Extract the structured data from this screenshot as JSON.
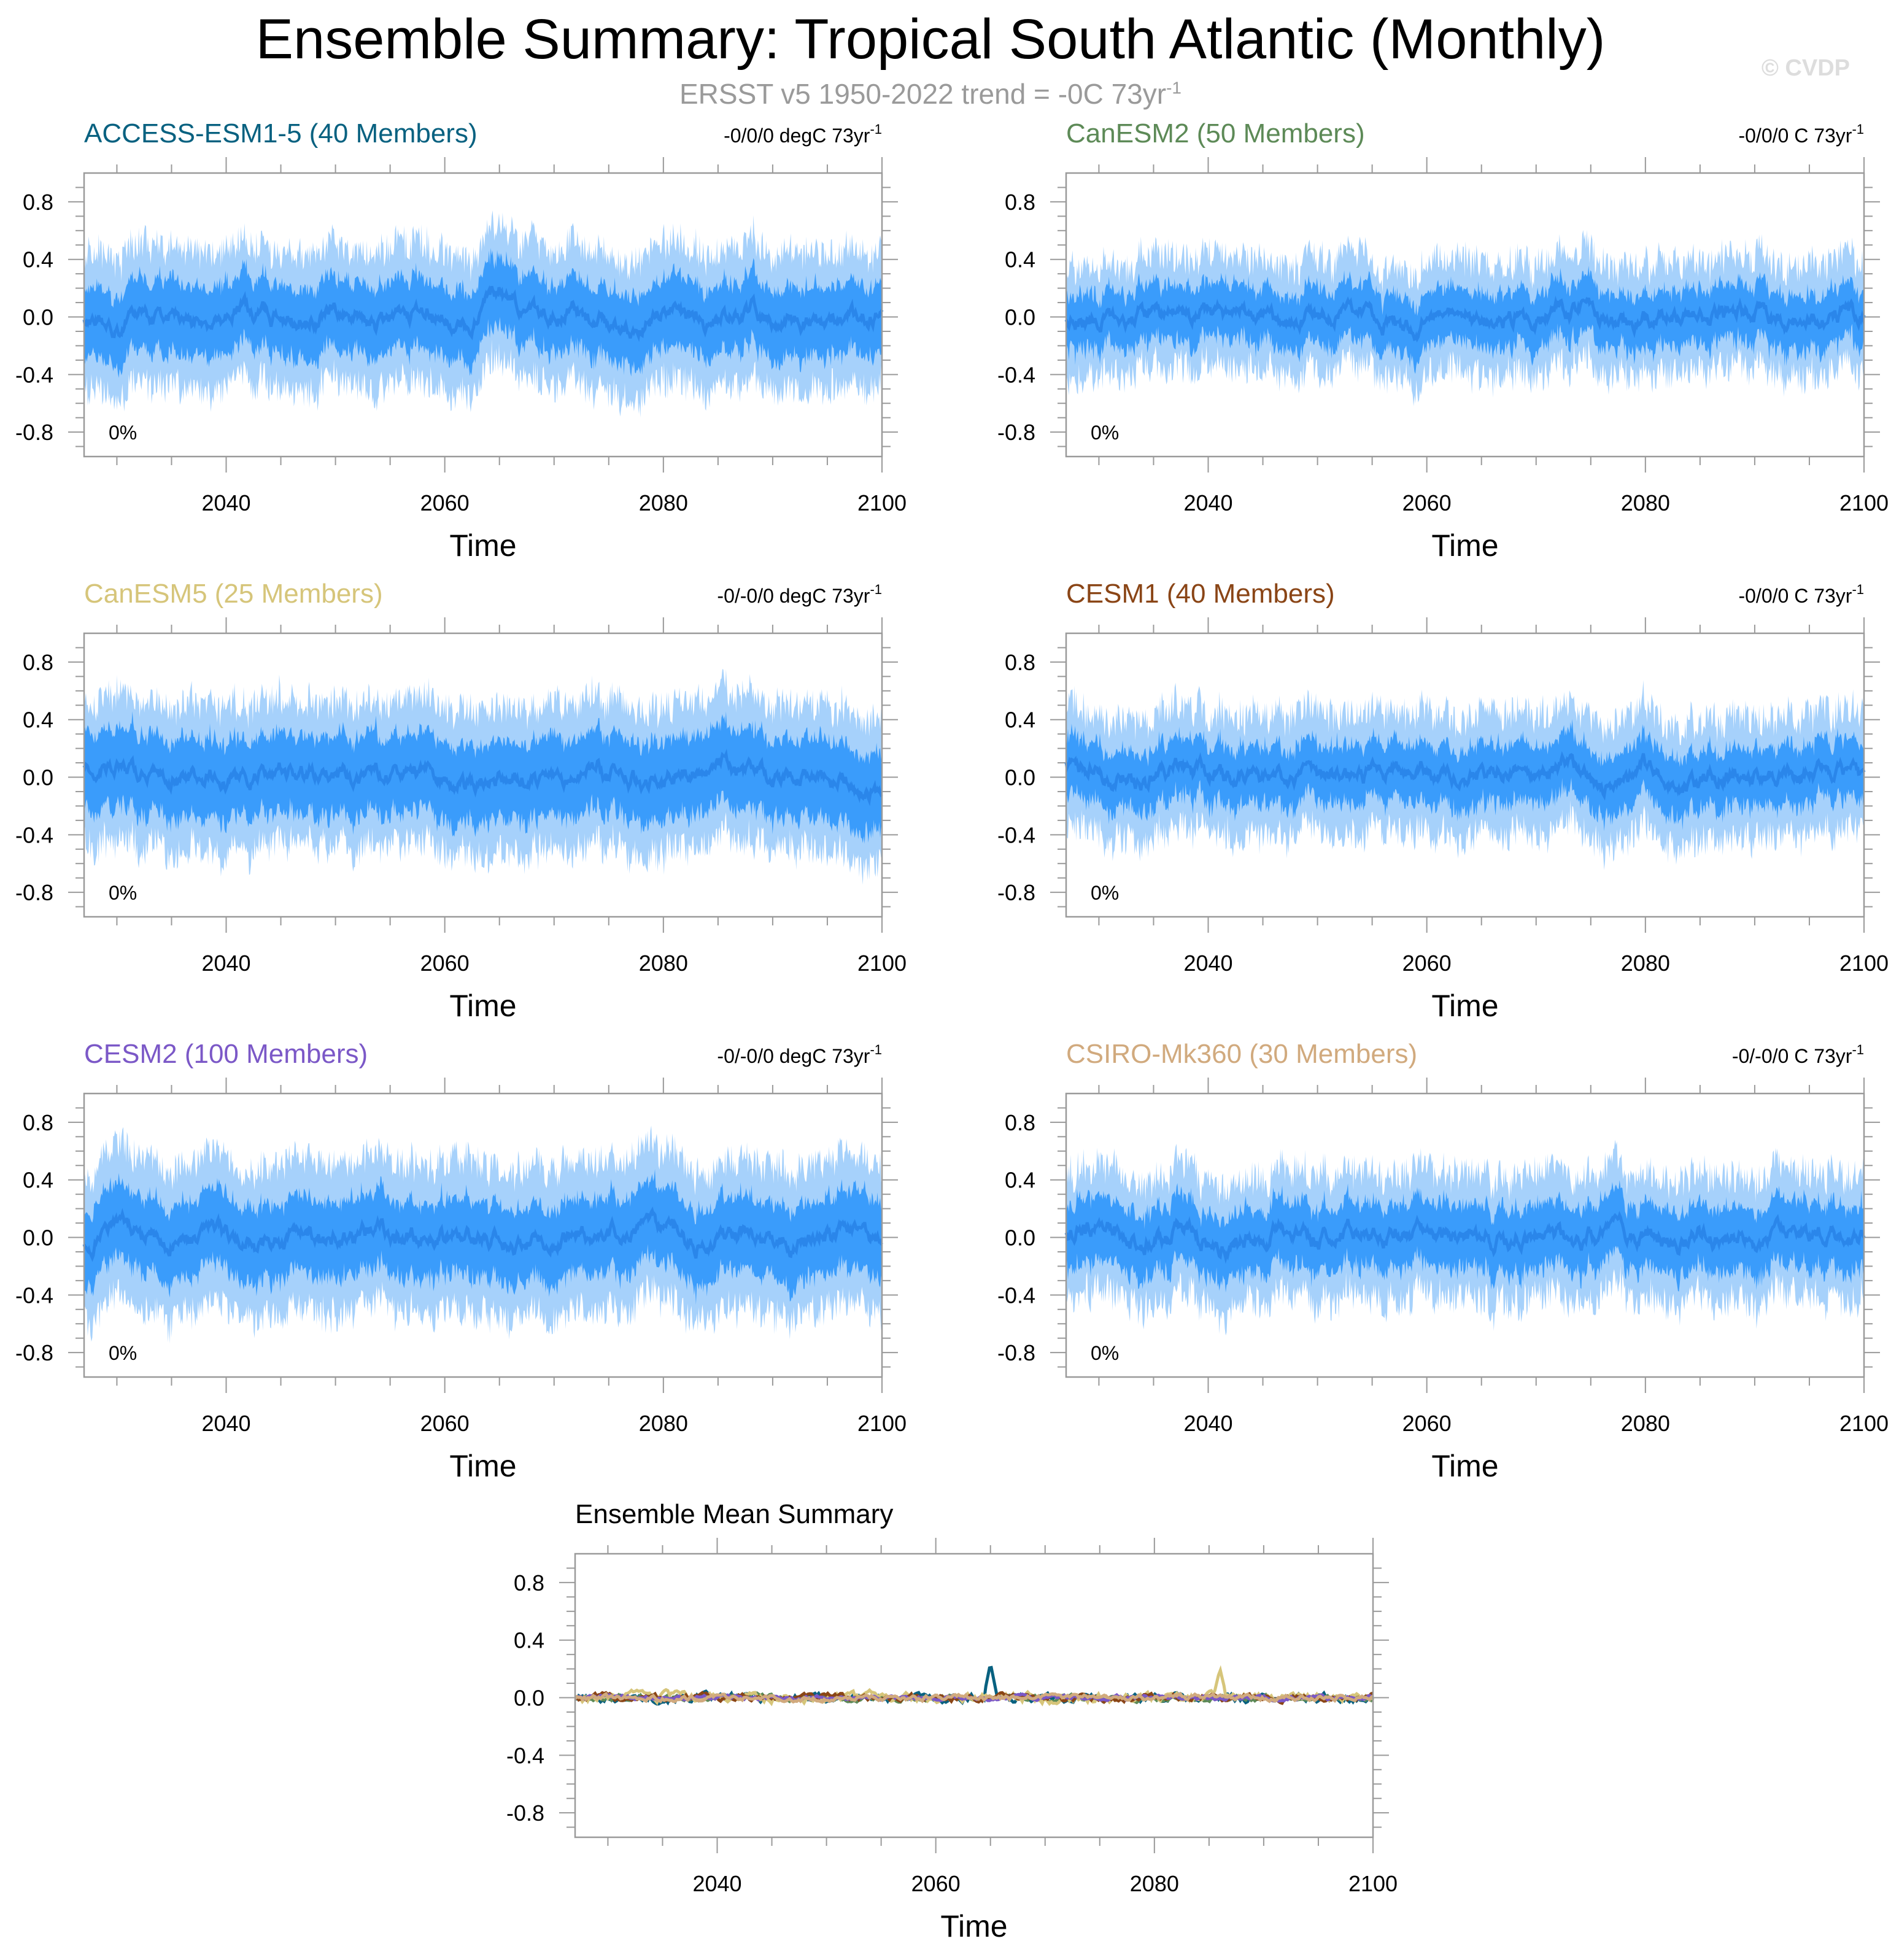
{
  "page": {
    "title": "Ensemble Summary: Tropical South Atlantic (Monthly)",
    "subtitle_main": "ERSST v5 1950-2022 trend = -0C 73yr",
    "subtitle_sup": "-1",
    "watermark": "© CVDP"
  },
  "colors": {
    "band_outer": "#a6d1fb",
    "band_inner": "#3a9cfb",
    "mean_line": "#2a86ea",
    "axis": "#9a9a9a",
    "text": "#000000"
  },
  "chart_data": [
    {
      "type": "area",
      "id": "access",
      "model": "ACCESS-ESM1-5 (40 Members)",
      "title_color": "#086180",
      "trend": "-0/0/0 degC 73yr",
      "trend_sup": "-1",
      "percent": "0%",
      "xlabel": "Time",
      "xlim": [
        2027,
        2100
      ],
      "ylim": [
        -0.97,
        1.0
      ],
      "xticks": [
        2040,
        2060,
        2080,
        2100
      ],
      "yticks": [
        0.8,
        0.4,
        0.0,
        -0.4,
        -0.8
      ],
      "ytick_labels": [
        "0.8",
        "0.4",
        "0.0",
        "-0.4",
        "-0.8"
      ],
      "series_anchors": {
        "x": [
          2027,
          2030,
          2034,
          2038,
          2042,
          2046,
          2050,
          2054,
          2058,
          2062,
          2065,
          2068,
          2072,
          2076,
          2080,
          2084,
          2088,
          2092,
          2096,
          2100
        ],
        "mean": [
          0.0,
          -0.05,
          0.04,
          -0.03,
          0.05,
          -0.04,
          0.03,
          -0.05,
          0.05,
          -0.08,
          0.2,
          0.02,
          0.05,
          -0.1,
          0.03,
          -0.06,
          0.04,
          -0.05,
          0.05,
          0.0
        ]
      },
      "band_inner": 0.22,
      "band_outer": 0.42,
      "seed": 11
    },
    {
      "type": "area",
      "id": "canesm2",
      "model": "CanESM2 (50 Members)",
      "title_color": "#5d8a57",
      "trend": "-0/0/0 C 73yr",
      "trend_sup": "-1",
      "percent": "0%",
      "xlabel": "Time",
      "xlim": [
        2027,
        2100
      ],
      "ylim": [
        -0.97,
        1.0
      ],
      "xticks": [
        2040,
        2060,
        2080,
        2100
      ],
      "yticks": [
        0.8,
        0.4,
        0.0,
        -0.4,
        -0.8
      ],
      "ytick_labels": [
        "0.8",
        "0.4",
        "0.0",
        "-0.4",
        "-0.8"
      ],
      "series_anchors": {
        "x": [
          2027,
          2031,
          2035,
          2039,
          2043,
          2047,
          2051,
          2055,
          2058,
          2062,
          2066,
          2070,
          2074,
          2078,
          2082,
          2086,
          2090,
          2094,
          2098,
          2100
        ],
        "mean": [
          0.0,
          -0.03,
          0.03,
          -0.02,
          0.04,
          -0.03,
          0.03,
          0.05,
          -0.1,
          0.03,
          -0.03,
          0.03,
          0.05,
          -0.07,
          0.03,
          -0.02,
          0.04,
          -0.03,
          0.02,
          0.0
        ]
      },
      "band_inner": 0.17,
      "band_outer": 0.33,
      "seed": 23
    },
    {
      "type": "area",
      "id": "canesm5",
      "model": "CanESM5 (25 Members)",
      "title_color": "#d6c57a",
      "trend": "-0/-0/0 degC 73yr",
      "trend_sup": "-1",
      "percent": "0%",
      "xlabel": "Time",
      "xlim": [
        2027,
        2100
      ],
      "ylim": [
        -0.97,
        1.0
      ],
      "xticks": [
        2040,
        2060,
        2080,
        2100
      ],
      "yticks": [
        0.8,
        0.4,
        0.0,
        -0.4,
        -0.8
      ],
      "ytick_labels": [
        "0.8",
        "0.4",
        "0.0",
        "-0.4",
        "-0.8"
      ],
      "series_anchors": {
        "x": [
          2027,
          2030,
          2034,
          2038,
          2042,
          2046,
          2050,
          2054,
          2058,
          2062,
          2066,
          2070,
          2074,
          2078,
          2082,
          2086,
          2090,
          2094,
          2098,
          2100
        ],
        "mean": [
          0.1,
          0.05,
          -0.02,
          0.03,
          -0.05,
          0.06,
          -0.03,
          0.02,
          0.05,
          -0.06,
          0.03,
          -0.03,
          0.05,
          -0.02,
          0.04,
          0.1,
          -0.03,
          0.02,
          -0.05,
          -0.18
        ]
      },
      "band_inner": 0.25,
      "band_outer": 0.45,
      "seed": 37
    },
    {
      "type": "area",
      "id": "cesm1",
      "model": "CESM1 (40 Members)",
      "title_color": "#8a4516",
      "trend": "-0/0/0 C 73yr",
      "trend_sup": "-1",
      "percent": "0%",
      "xlabel": "Time",
      "xlim": [
        2027,
        2100
      ],
      "ylim": [
        -0.97,
        1.0
      ],
      "xticks": [
        2040,
        2060,
        2080,
        2100
      ],
      "yticks": [
        0.8,
        0.4,
        0.0,
        -0.4,
        -0.8
      ],
      "ytick_labels": [
        "0.8",
        "0.4",
        "0.0",
        "-0.4",
        "-0.8"
      ],
      "series_anchors": {
        "x": [
          2027,
          2030,
          2034,
          2038,
          2042,
          2046,
          2050,
          2054,
          2058,
          2062,
          2066,
          2070,
          2073,
          2076,
          2080,
          2084,
          2088,
          2092,
          2096,
          2100
        ],
        "mean": [
          0.12,
          0.02,
          -0.06,
          0.08,
          -0.04,
          0.03,
          -0.05,
          0.02,
          0.06,
          -0.03,
          0.04,
          0.02,
          0.12,
          -0.06,
          0.08,
          -0.08,
          0.04,
          -0.02,
          0.03,
          -0.02
        ]
      },
      "band_inner": 0.18,
      "band_outer": 0.36,
      "seed": 41
    },
    {
      "type": "area",
      "id": "cesm2",
      "model": "CESM2 (100 Members)",
      "title_color": "#7b58c7",
      "trend": "-0/-0/0 degC 73yr",
      "trend_sup": "-1",
      "percent": "0%",
      "xlabel": "Time",
      "xlim": [
        2027,
        2100
      ],
      "ylim": [
        -0.97,
        1.0
      ],
      "xticks": [
        2040,
        2060,
        2080,
        2100
      ],
      "yticks": [
        0.8,
        0.4,
        0.0,
        -0.4,
        -0.8
      ],
      "ytick_labels": [
        "0.8",
        "0.4",
        "0.0",
        "-0.4",
        "-0.8"
      ],
      "series_anchors": {
        "x": [
          2027,
          2031,
          2035,
          2039,
          2043,
          2047,
          2051,
          2055,
          2059,
          2063,
          2067,
          2071,
          2075,
          2079,
          2083,
          2087,
          2091,
          2095,
          2098,
          2100
        ],
        "mean": [
          -0.03,
          0.05,
          -0.03,
          0.04,
          -0.06,
          0.02,
          -0.02,
          0.03,
          -0.01,
          0.02,
          -0.04,
          -0.02,
          0.02,
          0.04,
          -0.02,
          0.02,
          -0.03,
          0.02,
          0.08,
          -0.05
        ]
      },
      "band_inner": 0.24,
      "band_outer": 0.46,
      "seed": 53
    },
    {
      "type": "area",
      "id": "csiro",
      "model": "CSIRO-Mk360 (30 Members)",
      "title_color": "#d1aa7e",
      "trend": "-0/-0/0 C 73yr",
      "trend_sup": "-1",
      "percent": "0%",
      "xlabel": "Time",
      "xlim": [
        2027,
        2100
      ],
      "ylim": [
        -0.97,
        1.0
      ],
      "xticks": [
        2040,
        2060,
        2080,
        2100
      ],
      "yticks": [
        0.8,
        0.4,
        0.0,
        -0.4,
        -0.8
      ],
      "ytick_labels": [
        "0.8",
        "0.4",
        "0.0",
        "-0.4",
        "-0.8"
      ],
      "series_anchors": {
        "x": [
          2027,
          2030,
          2034,
          2038,
          2042,
          2046,
          2050,
          2054,
          2058,
          2062,
          2066,
          2070,
          2074,
          2078,
          2082,
          2086,
          2090,
          2094,
          2098,
          2100
        ],
        "mean": [
          0.05,
          0.08,
          -0.03,
          0.04,
          -0.05,
          0.03,
          -0.02,
          0.05,
          0.0,
          0.03,
          -0.03,
          0.02,
          -0.02,
          0.04,
          -0.03,
          0.02,
          -0.01,
          0.03,
          0.02,
          -0.03
        ]
      },
      "band_inner": 0.2,
      "band_outer": 0.38,
      "seed": 67
    },
    {
      "type": "line",
      "id": "mean",
      "model": "Ensemble Mean Summary",
      "title_color": "#000000",
      "xlabel": "Time",
      "xlim": [
        2027,
        2100
      ],
      "ylim": [
        -0.97,
        1.0
      ],
      "xticks": [
        2040,
        2060,
        2080,
        2100
      ],
      "yticks": [
        0.8,
        0.4,
        0.0,
        -0.4,
        -0.8
      ],
      "ytick_labels": [
        "0.8",
        "0.4",
        "0.0",
        "-0.4",
        "-0.8"
      ],
      "series": [
        {
          "name": "ACCESS-ESM1-5",
          "color": "#086180",
          "seed": 101,
          "amp": 0.07,
          "spike_x": 2065,
          "spike_y": 0.24
        },
        {
          "name": "CanESM2",
          "color": "#5d8a57",
          "seed": 102,
          "amp": 0.05
        },
        {
          "name": "CanESM5",
          "color": "#d6c57a",
          "seed": 103,
          "amp": 0.08,
          "spike_x": 2086,
          "spike_y": 0.2
        },
        {
          "name": "CESM1",
          "color": "#8a4516",
          "seed": 104,
          "amp": 0.06
        },
        {
          "name": "CESM2",
          "color": "#7b58c7",
          "seed": 105,
          "amp": 0.04
        },
        {
          "name": "CSIRO-Mk360",
          "color": "#d1aa7e",
          "seed": 106,
          "amp": 0.05
        }
      ]
    }
  ]
}
